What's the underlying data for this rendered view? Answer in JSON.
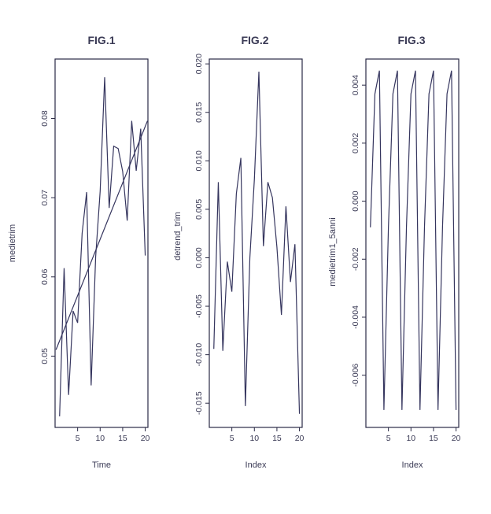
{
  "chart_data": [
    {
      "type": "line",
      "title": "FIG.1",
      "xlabel": "Time",
      "ylabel": "medietrim",
      "xlim": [
        0,
        20.6
      ],
      "ylim": [
        0.041,
        0.0875
      ],
      "xticks": [
        5,
        10,
        15,
        20
      ],
      "xtick_labels": [
        "5",
        "10",
        "15",
        "20"
      ],
      "yticks": [
        0.05,
        0.06,
        0.07,
        0.08
      ],
      "ytick_labels": [
        "0.05",
        "0.06",
        "0.07",
        "0.08"
      ],
      "grid": false,
      "series": [
        {
          "x": [
            1,
            2,
            3,
            4,
            5,
            6,
            7,
            8,
            9,
            10,
            11,
            12,
            13,
            14,
            15,
            16,
            17,
            18,
            19,
            20
          ],
          "values": [
            0.0424,
            0.0611,
            0.0451,
            0.0557,
            0.0542,
            0.0655,
            0.0707,
            0.0463,
            0.0625,
            0.0708,
            0.0852,
            0.0687,
            0.0765,
            0.0762,
            0.0733,
            0.0671,
            0.0797,
            0.0734,
            0.0787,
            0.0627
          ]
        }
      ],
      "trend_line": {
        "x": [
          0.2,
          20.5
        ],
        "values": [
          0.0508,
          0.0797
        ]
      }
    },
    {
      "type": "line",
      "title": "FIG.2",
      "xlabel": "Index",
      "ylabel": "detrend_trim",
      "xlim": [
        0,
        20.6
      ],
      "ylim": [
        -0.0175,
        0.0205
      ],
      "xticks": [
        5,
        10,
        15,
        20
      ],
      "xtick_labels": [
        "5",
        "10",
        "15",
        "20"
      ],
      "yticks": [
        -0.015,
        -0.01,
        -0.005,
        0.0,
        0.005,
        0.01,
        0.015,
        0.02
      ],
      "ytick_labels": [
        "-0.015",
        "-0.010",
        "-0.005",
        "0.000",
        "0.005",
        "0.010",
        "0.015",
        "0.020"
      ],
      "grid": false,
      "series": [
        {
          "x": [
            1,
            2,
            3,
            4,
            5,
            6,
            7,
            8,
            9,
            10,
            11,
            12,
            13,
            14,
            15,
            16,
            17,
            18,
            19,
            20
          ],
          "values": [
            -0.0094,
            0.0078,
            -0.0096,
            -0.0004,
            -0.0035,
            0.0066,
            0.0103,
            -0.0153,
            0.0,
            0.0081,
            0.0192,
            0.0012,
            0.0078,
            0.0062,
            0.0011,
            -0.0059,
            0.0053,
            -0.0025,
            0.0014,
            -0.0161
          ]
        }
      ]
    },
    {
      "type": "line",
      "title": "FIG.3",
      "xlabel": "Index",
      "ylabel": "medietrim1_5anni",
      "xlim": [
        0,
        20.6
      ],
      "ylim": [
        -0.0078,
        0.0049
      ],
      "xticks": [
        5,
        10,
        15,
        20
      ],
      "xtick_labels": [
        "5",
        "10",
        "15",
        "20"
      ],
      "yticks": [
        -0.006,
        -0.004,
        -0.002,
        0.0,
        0.002,
        0.004
      ],
      "ytick_labels": [
        "-0.006",
        "-0.004",
        "-0.002",
        "0.000",
        "0.002",
        "0.004"
      ],
      "grid": false,
      "series": [
        {
          "x": [
            1,
            2,
            3,
            4,
            5,
            6,
            7,
            8,
            9,
            10,
            11,
            12,
            13,
            14,
            15,
            16,
            17,
            18,
            19,
            20
          ],
          "values": [
            -0.0009,
            0.0037,
            0.0045,
            -0.0072,
            -0.0009,
            0.0037,
            0.0045,
            -0.0072,
            -0.0009,
            0.0037,
            0.0045,
            -0.0072,
            -0.0009,
            0.0037,
            0.0045,
            -0.0072,
            -0.0009,
            0.0037,
            0.0045,
            -0.0072
          ]
        }
      ]
    }
  ]
}
